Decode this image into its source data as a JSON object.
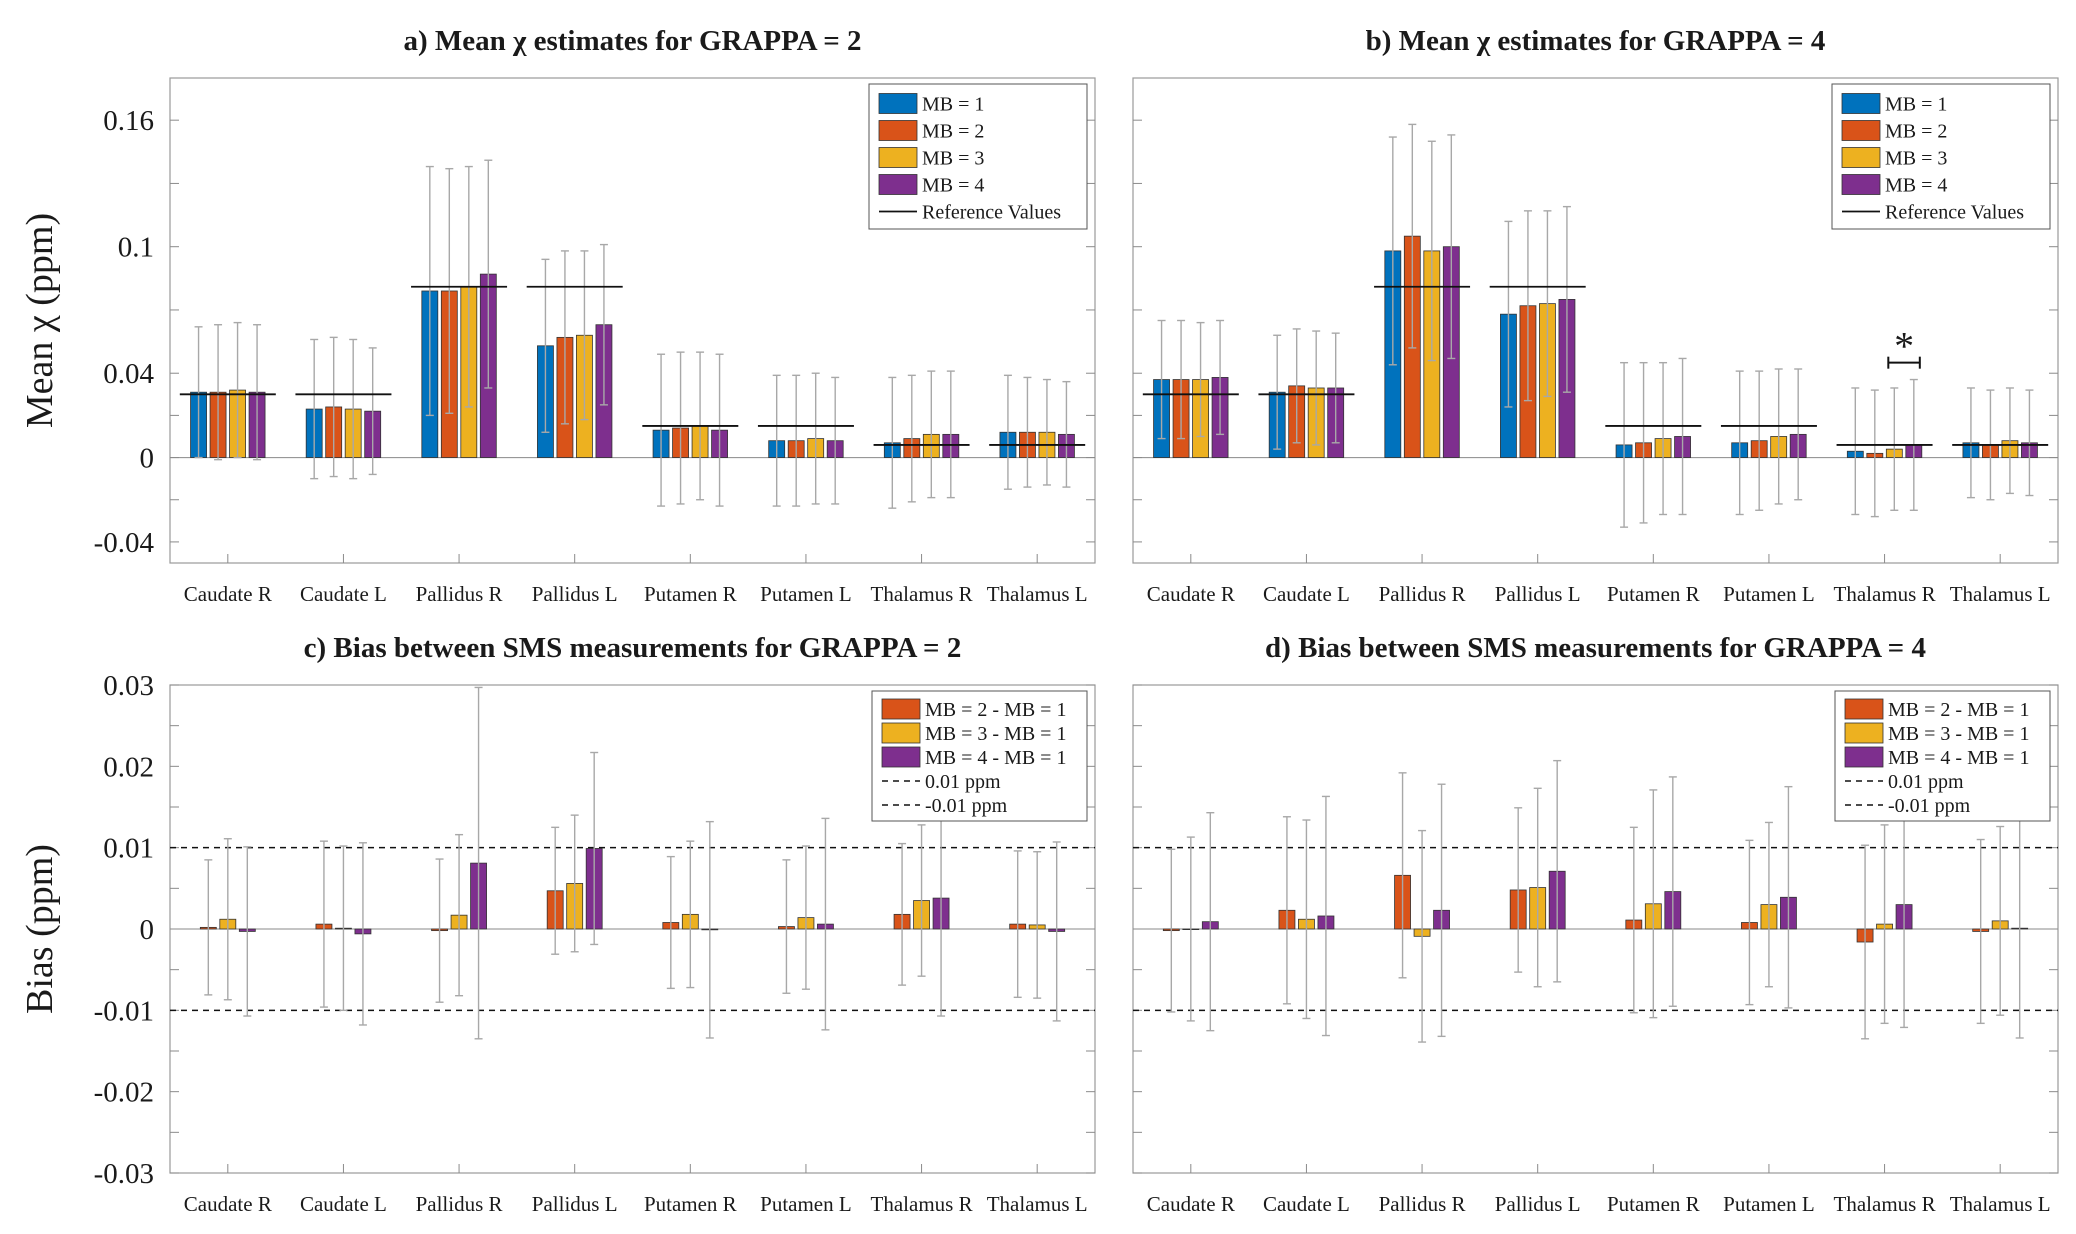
{
  "figure": {
    "colors": {
      "MB1": "#0072BD",
      "MB2": "#D95319",
      "MB3": "#EDB120",
      "MB4": "#7E2F8E",
      "reference": "#000000"
    }
  },
  "chart_data": [
    {
      "id": "a",
      "type": "bar",
      "title": "a) Mean χ estimates for GRAPPA = 2",
      "ylabel": "Mean χ (ppm)",
      "xlabel": "",
      "ylim": [
        -0.05,
        0.18
      ],
      "yticks": [
        0.16,
        0.1,
        0.04,
        0,
        -0.04
      ],
      "ytick_labels": [
        "0.16",
        "0.1",
        "0.04",
        "0",
        "-0.04"
      ],
      "categories": [
        "Caudate R",
        "Caudate L",
        "Pallidus R",
        "Pallidus L",
        "Putamen R",
        "Putamen L",
        "Thalamus R",
        "Thalamus L"
      ],
      "series": [
        {
          "name": "MB = 1",
          "color_key": "MB1",
          "values": [
            0.031,
            0.023,
            0.079,
            0.053,
            0.013,
            0.008,
            0.007,
            0.012
          ],
          "errors": [
            0.031,
            0.033,
            0.059,
            0.041,
            0.036,
            0.031,
            0.031,
            0.027
          ]
        },
        {
          "name": "MB = 2",
          "color_key": "MB2",
          "values": [
            0.031,
            0.024,
            0.079,
            0.057,
            0.014,
            0.008,
            0.009,
            0.012
          ],
          "errors": [
            0.032,
            0.033,
            0.058,
            0.041,
            0.036,
            0.031,
            0.03,
            0.026
          ]
        },
        {
          "name": "MB = 3",
          "color_key": "MB3",
          "values": [
            0.032,
            0.023,
            0.081,
            0.058,
            0.015,
            0.009,
            0.011,
            0.012
          ],
          "errors": [
            0.032,
            0.033,
            0.057,
            0.04,
            0.035,
            0.031,
            0.03,
            0.025
          ]
        },
        {
          "name": "MB = 4",
          "color_key": "MB4",
          "values": [
            0.031,
            0.022,
            0.087,
            0.063,
            0.013,
            0.008,
            0.011,
            0.011
          ],
          "errors": [
            0.032,
            0.03,
            0.054,
            0.038,
            0.036,
            0.03,
            0.03,
            0.025
          ]
        }
      ],
      "reference_values": [
        0.03,
        0.03,
        0.081,
        0.081,
        0.015,
        0.015,
        0.006,
        0.006
      ],
      "annotations": [],
      "legend": {
        "position": "top-right",
        "entries": [
          "MB = 1",
          "MB = 2",
          "MB = 3",
          "MB = 4",
          "Reference Values"
        ]
      }
    },
    {
      "id": "b",
      "type": "bar",
      "title": "b) Mean χ estimates for GRAPPA = 4",
      "ylabel": "",
      "xlabel": "",
      "ylim": [
        -0.05,
        0.18
      ],
      "yticks": [
        0.16,
        0.1,
        0.04,
        0,
        -0.04
      ],
      "ytick_labels": [],
      "categories": [
        "Caudate R",
        "Caudate L",
        "Pallidus R",
        "Pallidus L",
        "Putamen R",
        "Putamen L",
        "Thalamus R",
        "Thalamus L"
      ],
      "series": [
        {
          "name": "MB = 1",
          "color_key": "MB1",
          "values": [
            0.037,
            0.031,
            0.098,
            0.068,
            0.006,
            0.007,
            0.003,
            0.007
          ],
          "errors": [
            0.028,
            0.027,
            0.054,
            0.044,
            0.039,
            0.034,
            0.03,
            0.026
          ]
        },
        {
          "name": "MB = 2",
          "color_key": "MB2",
          "values": [
            0.037,
            0.034,
            0.105,
            0.072,
            0.007,
            0.008,
            0.002,
            0.006
          ],
          "errors": [
            0.028,
            0.027,
            0.053,
            0.045,
            0.038,
            0.033,
            0.03,
            0.026
          ]
        },
        {
          "name": "MB = 3",
          "color_key": "MB3",
          "values": [
            0.037,
            0.033,
            0.098,
            0.073,
            0.009,
            0.01,
            0.004,
            0.008
          ],
          "errors": [
            0.027,
            0.027,
            0.052,
            0.044,
            0.036,
            0.032,
            0.029,
            0.025
          ]
        },
        {
          "name": "MB = 4",
          "color_key": "MB4",
          "values": [
            0.038,
            0.033,
            0.1,
            0.075,
            0.01,
            0.011,
            0.006,
            0.007
          ],
          "errors": [
            0.027,
            0.026,
            0.053,
            0.044,
            0.037,
            0.031,
            0.031,
            0.025
          ]
        }
      ],
      "reference_values": [
        0.03,
        0.03,
        0.081,
        0.081,
        0.015,
        0.015,
        0.006,
        0.006
      ],
      "annotations": [
        {
          "type": "significance",
          "category": "Thalamus R",
          "from_series": 2,
          "to_series": 3,
          "y": 0.045,
          "label": "*"
        }
      ],
      "legend": {
        "position": "top-right",
        "entries": [
          "MB = 1",
          "MB = 2",
          "MB = 3",
          "MB = 4",
          "Reference Values"
        ]
      }
    },
    {
      "id": "c",
      "type": "bar",
      "title": "c) Bias between SMS measurements for GRAPPA = 2",
      "ylabel": "Bias (ppm)",
      "xlabel": "",
      "ylim": [
        -0.03,
        0.03
      ],
      "yticks": [
        0.03,
        0.02,
        0.01,
        0,
        -0.01,
        -0.02,
        -0.03
      ],
      "ytick_labels": [
        "0.03",
        "0.02",
        "0.01",
        "0",
        "-0.01",
        "-0.02",
        "-0.03"
      ],
      "categories": [
        "Caudate R",
        "Caudate L",
        "Pallidus R",
        "Pallidus L",
        "Putamen R",
        "Putamen L",
        "Thalamus R",
        "Thalamus L"
      ],
      "series": [
        {
          "name": "MB = 2 - MB = 1",
          "color_key": "MB2",
          "values": [
            0.0002,
            0.0006,
            -0.0002,
            0.0047,
            0.0008,
            0.0003,
            0.0018,
            0.0006
          ],
          "errors": [
            0.0083,
            0.0102,
            0.0088,
            0.0078,
            0.0081,
            0.0082,
            0.0087,
            0.009
          ]
        },
        {
          "name": "MB = 3 - MB = 1",
          "color_key": "MB3",
          "values": [
            0.0012,
            0.0001,
            0.0017,
            0.0056,
            0.0018,
            0.0014,
            0.0035,
            0.0005
          ],
          "errors": [
            0.0099,
            0.0101,
            0.0099,
            0.0084,
            0.009,
            0.0088,
            0.0093,
            0.009
          ]
        },
        {
          "name": "MB = 4 - MB = 1",
          "color_key": "MB4",
          "values": [
            -0.0003,
            -0.0006,
            0.0081,
            0.0099,
            -0.0001,
            0.0006,
            0.0038,
            -0.0003
          ],
          "errors": [
            0.0104,
            0.0112,
            0.0216,
            0.0118,
            0.0133,
            0.013,
            0.0145,
            0.011
          ]
        }
      ],
      "reference_lines": [
        {
          "label": "0.01 ppm",
          "y": 0.01
        },
        {
          "label": "-0.01 ppm",
          "y": -0.01
        }
      ],
      "annotations": [],
      "legend": {
        "position": "top-right",
        "entries": [
          "MB = 2 - MB = 1",
          "MB = 3 - MB = 1",
          "MB = 4 - MB = 1",
          "0.01 ppm",
          "-0.01 ppm"
        ]
      }
    },
    {
      "id": "d",
      "type": "bar",
      "title": "d) Bias between SMS measurements for GRAPPA = 4",
      "ylabel": "",
      "xlabel": "",
      "ylim": [
        -0.03,
        0.03
      ],
      "yticks": [
        0.03,
        0.02,
        0.01,
        0,
        -0.01,
        -0.02,
        -0.03
      ],
      "ytick_labels": [],
      "categories": [
        "Caudate R",
        "Caudate L",
        "Pallidus R",
        "Pallidus L",
        "Putamen R",
        "Putamen L",
        "Thalamus R",
        "Thalamus L"
      ],
      "series": [
        {
          "name": "MB = 2 - MB = 1",
          "color_key": "MB2",
          "values": [
            -0.0002,
            0.0023,
            0.0066,
            0.0048,
            0.0011,
            0.0008,
            -0.0016,
            -0.0003
          ],
          "errors": [
            0.01,
            0.0115,
            0.0126,
            0.0101,
            0.0114,
            0.0101,
            0.0119,
            0.0113
          ]
        },
        {
          "name": "MB = 3 - MB = 1",
          "color_key": "MB3",
          "values": [
            0.0,
            0.0012,
            -0.0009,
            0.0051,
            0.0031,
            0.003,
            0.0006,
            0.001
          ],
          "errors": [
            0.0113,
            0.0122,
            0.013,
            0.0122,
            0.014,
            0.0101,
            0.0122,
            0.0116
          ]
        },
        {
          "name": "MB = 4 - MB = 1",
          "color_key": "MB4",
          "values": [
            0.0009,
            0.0016,
            0.0023,
            0.0071,
            0.0046,
            0.0039,
            0.003,
            0.0001
          ],
          "errors": [
            0.0134,
            0.0147,
            0.0155,
            0.0136,
            0.0141,
            0.0136,
            0.0151,
            0.0135
          ]
        }
      ],
      "reference_lines": [
        {
          "label": "0.01 ppm",
          "y": 0.01
        },
        {
          "label": "-0.01 ppm",
          "y": -0.01
        }
      ],
      "annotations": [],
      "legend": {
        "position": "top-right",
        "entries": [
          "MB = 2 - MB = 1",
          "MB = 3 - MB = 1",
          "MB = 4 - MB = 1",
          "0.01 ppm",
          "-0.01 ppm"
        ]
      }
    }
  ]
}
